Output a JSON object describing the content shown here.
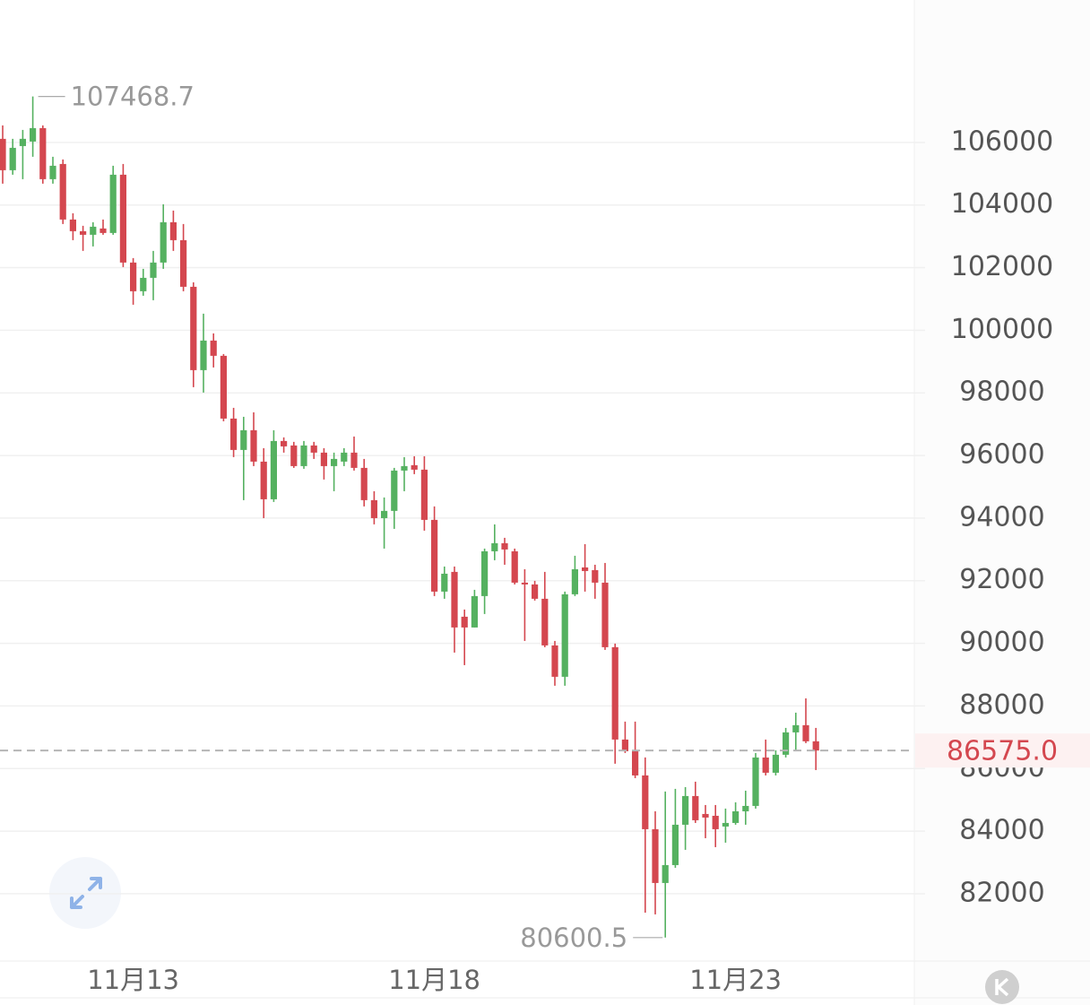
{
  "chart_data": {
    "type": "candlestick",
    "categories": [
      null,
      null,
      null,
      null,
      null,
      null,
      null,
      null,
      null,
      null,
      null,
      null,
      null,
      "11月13",
      null,
      null,
      null,
      null,
      null,
      null,
      null,
      null,
      null,
      null,
      null,
      null,
      null,
      null,
      null,
      null,
      null,
      null,
      null,
      null,
      null,
      null,
      null,
      null,
      null,
      null,
      null,
      null,
      null,
      "11月18",
      null,
      null,
      null,
      null,
      null,
      null,
      null,
      null,
      null,
      null,
      null,
      null,
      null,
      null,
      null,
      null,
      null,
      null,
      null,
      null,
      null,
      null,
      null,
      null,
      null,
      null,
      null,
      null,
      null,
      "11月23",
      null,
      null,
      null,
      null,
      null,
      null,
      null,
      null
    ],
    "series": [
      {
        "up_color": "#55b160",
        "down_color": "#d4474f",
        "open": [
          106115,
          105112,
          105884,
          106029,
          106458,
          104826,
          105312,
          103537,
          103165,
          103050,
          103251,
          103108,
          104969,
          102163,
          101246,
          101675,
          102163,
          103451,
          102878,
          101389,
          98726,
          99671,
          99184,
          97179,
          96177,
          96807,
          95804,
          94601,
          96463,
          96320,
          95661,
          96320,
          96091,
          95661,
          95804,
          96091,
          95604,
          94573,
          93999,
          94230,
          95518,
          95690,
          95547,
          93943,
          91652,
          92282,
          90850,
          90506,
          91509,
          92940,
          93198,
          92940,
          91938,
          91881,
          91423,
          89933,
          88931,
          91566,
          92424,
          92338,
          91938,
          89876,
          86926,
          86554,
          85780,
          84062,
          82344,
          82916,
          84205,
          85122,
          84549,
          84491,
          84148,
          84262,
          84634,
          84806,
          86353,
          85866,
          86440,
          87155,
          87384,
          86870
        ],
        "high": [
          106544,
          106115,
          106400,
          107468.7,
          106544,
          105542,
          105456,
          103738,
          103337,
          103451,
          103537,
          105255,
          105312,
          102306,
          101962,
          102535,
          104025,
          103823,
          103394,
          101532,
          100530,
          99900,
          99241,
          97522,
          97236,
          97379,
          96234,
          96807,
          96578,
          96435,
          96463,
          96435,
          96234,
          96091,
          96234,
          96606,
          95890,
          94859,
          94659,
          95604,
          95948,
          95976,
          95976,
          94373,
          92453,
          92453,
          91079,
          91709,
          93026,
          93799,
          93370,
          93026,
          92367,
          91996,
          92282,
          90076,
          91652,
          92797,
          93169,
          92510,
          92567,
          89990,
          87499,
          87499,
          86354,
          84635,
          85265,
          85351,
          85408,
          85580,
          84835,
          84835,
          84721,
          84921,
          85293,
          86497,
          86926,
          86583,
          87298,
          87785,
          88241,
          87298
        ],
        "low": [
          104683,
          104969,
          104826,
          105542,
          104683,
          104683,
          103394,
          102878,
          102535,
          102678,
          103050,
          103050,
          102019,
          100816,
          101103,
          100960,
          101962,
          102535,
          101246,
          98182,
          98010,
          98812,
          97093,
          95948,
          94573,
          95661,
          93999,
          94516,
          96091,
          95604,
          95575,
          95890,
          95232,
          94859,
          95661,
          95518,
          94373,
          93800,
          93026,
          93656,
          94859,
          95404,
          93599,
          91509,
          91423,
          89704,
          89303,
          90506,
          90936,
          92654,
          92510,
          91881,
          90076,
          91366,
          89876,
          88645,
          88645,
          91509,
          91652,
          91423,
          89790,
          86153,
          86497,
          85694,
          81398,
          81341,
          80600.5,
          82830,
          83403,
          84262,
          83775,
          83489,
          83632,
          84205,
          84205,
          84720,
          85780,
          85780,
          86354,
          86554,
          86812,
          85952
        ],
        "close": [
          105112,
          105828,
          106115,
          106458,
          104826,
          105255,
          103537,
          103165,
          103050,
          103308,
          103108,
          104969,
          102163,
          101246,
          101675,
          102163,
          103451,
          102878,
          101389,
          98726,
          99671,
          99184,
          97179,
          96177,
          96807,
          95804,
          94601,
          96463,
          96291,
          95661,
          96320,
          96091,
          95661,
          95890,
          96091,
          95604,
          94573,
          93999,
          94230,
          95518,
          95661,
          95547,
          93943,
          91652,
          92224,
          90506,
          90506,
          91509,
          92940,
          93198,
          92997,
          91938,
          91881,
          91423,
          89933,
          88931,
          91566,
          92367,
          92310,
          91938,
          89876,
          86926,
          86554,
          85780,
          84062,
          82344,
          82916,
          84205,
          85122,
          84348,
          84434,
          84062,
          84262,
          84634,
          84806,
          86353,
          85866,
          86440,
          87155,
          87384,
          86870,
          86575
        ]
      }
    ],
    "ylim": [
      79850,
      110550
    ],
    "yticks": [
      82000,
      84000,
      86000,
      88000,
      90000,
      92000,
      94000,
      96000,
      98000,
      100000,
      102000,
      104000,
      106000
    ],
    "grid": true,
    "last_price": {
      "value": 86575,
      "label": "86575.0",
      "color": "#d4474f"
    },
    "max_index": 3,
    "min_index": 66
  }
}
